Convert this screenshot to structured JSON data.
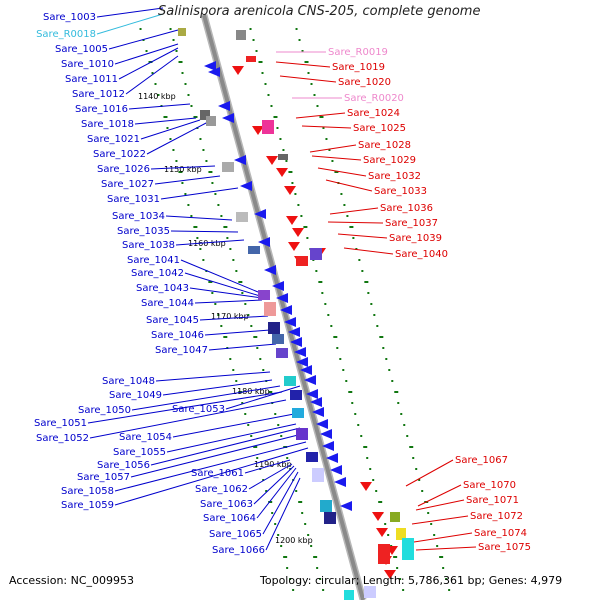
{
  "title": "Salinispora arenicola CNS-205, complete genome",
  "accession_text": "Accession: NC_009953",
  "topology_text": "Topology: circular; Length: 5,786,361 bp; Genes: 4,979",
  "colors": {
    "left_label": "#0000cc",
    "rna_left_label": "#33bbdd",
    "right_label": "#dd0000",
    "rna_right_label": "#ee88cc",
    "backbone": "#888888",
    "tick": "#117711"
  },
  "kbp_marks": [
    "1140 kbp",
    "1150 kbp",
    "1160 kbp",
    "1170 kbp",
    "1180 kbp",
    "1190 kbp",
    "1200 kbp"
  ],
  "left_genes": [
    {
      "label": "Sare_1003",
      "type": "gene"
    },
    {
      "label": "Sare_R0018",
      "type": "rna"
    },
    {
      "label": "Sare_1005",
      "type": "gene"
    },
    {
      "label": "Sare_1010",
      "type": "gene"
    },
    {
      "label": "Sare_1011",
      "type": "gene"
    },
    {
      "label": "Sare_1012",
      "type": "gene"
    },
    {
      "label": "Sare_1016",
      "type": "gene"
    },
    {
      "label": "Sare_1018",
      "type": "gene"
    },
    {
      "label": "Sare_1021",
      "type": "gene"
    },
    {
      "label": "Sare_1022",
      "type": "gene"
    },
    {
      "label": "Sare_1026",
      "type": "gene"
    },
    {
      "label": "Sare_1027",
      "type": "gene"
    },
    {
      "label": "Sare_1031",
      "type": "gene"
    },
    {
      "label": "Sare_1034",
      "type": "gene"
    },
    {
      "label": "Sare_1035",
      "type": "gene"
    },
    {
      "label": "Sare_1038",
      "type": "gene"
    },
    {
      "label": "Sare_1041",
      "type": "gene"
    },
    {
      "label": "Sare_1042",
      "type": "gene"
    },
    {
      "label": "Sare_1043",
      "type": "gene"
    },
    {
      "label": "Sare_1044",
      "type": "gene"
    },
    {
      "label": "Sare_1045",
      "type": "gene"
    },
    {
      "label": "Sare_1046",
      "type": "gene"
    },
    {
      "label": "Sare_1047",
      "type": "gene"
    },
    {
      "label": "Sare_1048",
      "type": "gene"
    },
    {
      "label": "Sare_1049",
      "type": "gene"
    },
    {
      "label": "Sare_1050",
      "type": "gene"
    },
    {
      "label": "Sare_1051",
      "type": "gene"
    },
    {
      "label": "Sare_1052",
      "type": "gene"
    },
    {
      "label": "Sare_1053",
      "type": "gene"
    },
    {
      "label": "Sare_1054",
      "type": "gene"
    },
    {
      "label": "Sare_1055",
      "type": "gene"
    },
    {
      "label": "Sare_1056",
      "type": "gene"
    },
    {
      "label": "Sare_1057",
      "type": "gene"
    },
    {
      "label": "Sare_1058",
      "type": "gene"
    },
    {
      "label": "Sare_1059",
      "type": "gene"
    },
    {
      "label": "Sare_1061",
      "type": "gene"
    },
    {
      "label": "Sare_1062",
      "type": "gene"
    },
    {
      "label": "Sare_1063",
      "type": "gene"
    },
    {
      "label": "Sare_1064",
      "type": "gene"
    },
    {
      "label": "Sare_1065",
      "type": "gene"
    },
    {
      "label": "Sare_1066",
      "type": "gene"
    }
  ],
  "right_genes": [
    {
      "label": "Sare_R0019",
      "type": "rna"
    },
    {
      "label": "Sare_1019",
      "type": "gene"
    },
    {
      "label": "Sare_1020",
      "type": "gene"
    },
    {
      "label": "Sare_R0020",
      "type": "rna"
    },
    {
      "label": "Sare_1024",
      "type": "gene"
    },
    {
      "label": "Sare_1025",
      "type": "gene"
    },
    {
      "label": "Sare_1028",
      "type": "gene"
    },
    {
      "label": "Sare_1029",
      "type": "gene"
    },
    {
      "label": "Sare_1032",
      "type": "gene"
    },
    {
      "label": "Sare_1033",
      "type": "gene"
    },
    {
      "label": "Sare_1036",
      "type": "gene"
    },
    {
      "label": "Sare_1037",
      "type": "gene"
    },
    {
      "label": "Sare_1039",
      "type": "gene"
    },
    {
      "label": "Sare_1040",
      "type": "gene"
    },
    {
      "label": "Sare_1067",
      "type": "gene"
    },
    {
      "label": "Sare_1070",
      "type": "gene"
    },
    {
      "label": "Sare_1071",
      "type": "gene"
    },
    {
      "label": "Sare_1072",
      "type": "gene"
    },
    {
      "label": "Sare_1074",
      "type": "gene"
    },
    {
      "label": "Sare_1075",
      "type": "gene"
    }
  ]
}
